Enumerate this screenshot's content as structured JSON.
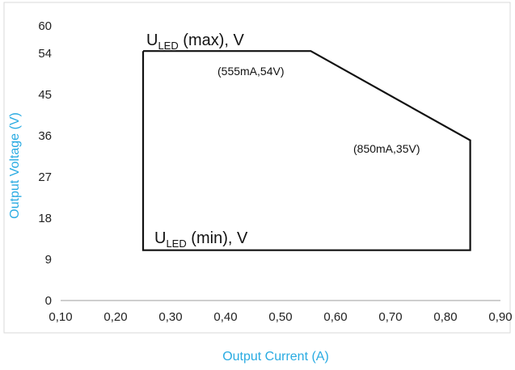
{
  "chart_data": {
    "type": "line",
    "xlabel": "Output Current (A)",
    "ylabel": "Output Voltage (V)",
    "xlim": [
      0.1,
      0.9
    ],
    "ylim": [
      0,
      60
    ],
    "x_ticks": [
      "0,10",
      "0,20",
      "0,30",
      "0,40",
      "0,50",
      "0,60",
      "0,70",
      "0,80",
      "0,90"
    ],
    "y_ticks": [
      "0",
      "9",
      "18",
      "27",
      "36",
      "45",
      "54",
      "60"
    ],
    "y_tick_values": [
      0,
      9,
      18,
      27,
      36,
      45,
      54,
      60
    ],
    "grid": false,
    "axis_color": "#29abe2",
    "line_color": "#111111",
    "series": [
      {
        "x": [
          0.25,
          0.555,
          0.845,
          0.845,
          0.25,
          0.25
        ],
        "y": [
          54.5,
          54.5,
          35,
          11,
          11,
          54.5
        ]
      }
    ],
    "annotations": {
      "max_label": {
        "main": "U",
        "sub": "LED",
        "rest": " (max), V"
      },
      "min_label": {
        "main": "U",
        "sub": "LED",
        "rest": " (min), V"
      },
      "point1": "(555mA,54V)",
      "point2": "(850mA,35V)"
    }
  }
}
